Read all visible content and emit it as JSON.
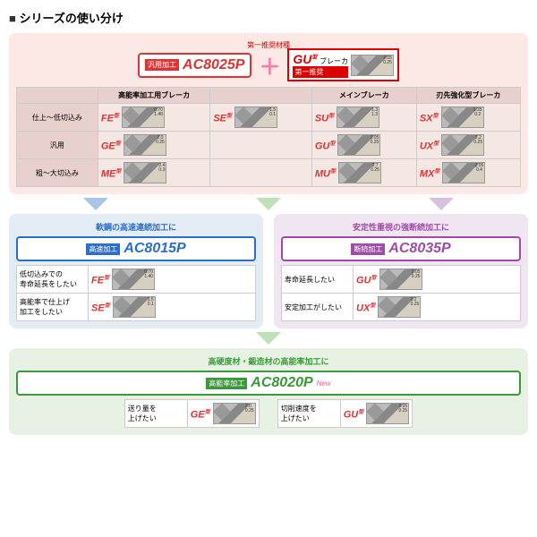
{
  "title": "シリーズの使い分け",
  "top": {
    "rec_label": "第一推奨材種",
    "main_grade": {
      "tag": "汎用加工",
      "name": "AC8025P",
      "color": "#d33",
      "tag_bg": "#d33"
    },
    "plus": "＋",
    "breaker": {
      "tag": "第一推奨",
      "type": "GU",
      "type_suffix": "型",
      "label": "ブレーカ",
      "color": "#d00"
    }
  },
  "grid": {
    "col_headers": [
      "",
      "高能率加工用ブレーカ",
      "",
      "メインブレーカ",
      "刃先強化型ブレーカ"
    ],
    "rows": [
      {
        "label": "仕上～低切込み",
        "cells": [
          {
            "type": "FE",
            "color": "#d33",
            "d1": "1.40",
            "d2": "0.70"
          },
          {
            "type": "SE",
            "color": "#d33",
            "d1": "0.1",
            "d2": "1.5"
          },
          {
            "type": "SU",
            "color": "#d33",
            "d1": "1.3",
            "d2": "1.3"
          },
          {
            "type": "SX",
            "color": "#d33",
            "d1": "0.2",
            "d2": "1.35"
          }
        ]
      },
      {
        "label": "汎用",
        "cells": [
          {
            "type": "GE",
            "color": "#d33",
            "d1": "0.25",
            "d2": "2.0"
          },
          null,
          {
            "type": "GU",
            "color": "#d33",
            "d1": "0.25",
            "d2": "2.05"
          },
          {
            "type": "UX",
            "color": "#d33",
            "d1": "0.25",
            "d2": "2.2"
          }
        ]
      },
      {
        "label": "粗～大切込み",
        "cells": [
          {
            "type": "ME",
            "color": "#d33",
            "d1": "0.3",
            "d2": "2.4"
          },
          null,
          {
            "type": "MU",
            "color": "#d33",
            "d1": "0.25",
            "d2": "2.7"
          },
          {
            "type": "MX",
            "color": "#d33",
            "d1": "0.4",
            "d2": "2.05"
          }
        ]
      }
    ]
  },
  "sub_blue": {
    "title": "軟鋼の高速連続加工に",
    "grade": {
      "tag": "高速加工",
      "name": "AC8015P",
      "color": "#2a6fc9",
      "tag_bg": "#2a6fc9"
    },
    "arrow_color": "#a8c4e8",
    "rows": [
      {
        "label": "低切込みでの\n寿命延長をしたい",
        "type": "FE",
        "d1": "1.40",
        "d2": "0.70"
      },
      {
        "label": "高能率で仕上げ\n加工をしたい",
        "type": "SE",
        "d1": "0.1",
        "d2": "1.5"
      }
    ]
  },
  "sub_purple": {
    "title": "安定性重視の強断続加工に",
    "grade": {
      "tag": "断続加工",
      "name": "AC8035P",
      "color": "#a04ba8",
      "tag_bg": "#a04ba8"
    },
    "arrow_color": "#d8c0e0",
    "rows": [
      {
        "label": "寿命延長したい",
        "type": "GU",
        "d1": "0.25",
        "d2": "2.05"
      },
      {
        "label": "安定加工がしたい",
        "type": "UX",
        "d1": "0.25",
        "d2": "2.2"
      }
    ]
  },
  "sub_green": {
    "title": "高硬度材・鍛造材の高能率加工に",
    "grade": {
      "tag": "高能率加工",
      "name": "AC8020P",
      "color": "#3a9a3a",
      "tag_bg": "#3a9a3a",
      "new": "New"
    },
    "arrow_color": "#c0e0b8",
    "rows": [
      {
        "label": "送り量を\n上げたい",
        "type": "GE",
        "d1": "0.25",
        "d2": "2.0"
      },
      {
        "label": "切削速度を\n上げたい",
        "type": "GU",
        "d1": "0.25",
        "d2": "2.05"
      }
    ]
  },
  "type_suffix": "型"
}
